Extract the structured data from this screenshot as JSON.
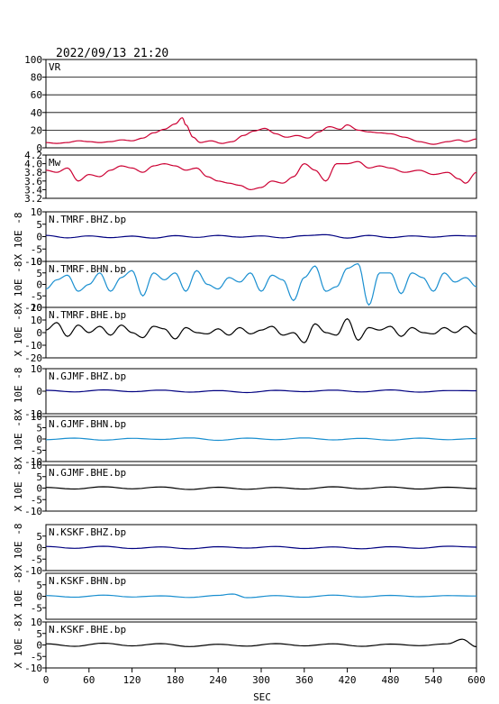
{
  "title": "2022/09/13 21:20",
  "xlabel": "SEC",
  "ylabel": "X 10E -8",
  "x_ticks": [
    "0",
    "60",
    "120",
    "180",
    "240",
    "300",
    "360",
    "420",
    "480",
    "540",
    "600"
  ],
  "colors": {
    "red": "#cc0033",
    "navy": "#000080",
    "cyan": "#1a8fd0",
    "black": "#000000",
    "frame": "#000000"
  },
  "chart_data": [
    {
      "type": "line",
      "label": "VR",
      "color": "#cc0033",
      "ylim": [
        0,
        100
      ],
      "yticks": [
        "0",
        "20",
        "40",
        "60",
        "80",
        "100"
      ],
      "grid": true,
      "x": [
        0,
        15,
        30,
        45,
        60,
        75,
        90,
        105,
        120,
        135,
        150,
        165,
        180,
        190,
        195,
        205,
        215,
        230,
        245,
        260,
        275,
        290,
        305,
        320,
        335,
        350,
        365,
        380,
        395,
        410,
        420,
        435,
        450,
        465,
        480,
        500,
        520,
        540,
        560,
        575,
        585,
        600
      ],
      "values": [
        6,
        5,
        6,
        8,
        7,
        6,
        7,
        9,
        8,
        11,
        17,
        21,
        27,
        34,
        26,
        12,
        6,
        8,
        5,
        7,
        14,
        19,
        22,
        16,
        12,
        14,
        11,
        18,
        24,
        21,
        26,
        20,
        18,
        17,
        16,
        12,
        7,
        4,
        7,
        9,
        7,
        10
      ]
    },
    {
      "type": "line",
      "label": "Mw",
      "color": "#cc0033",
      "ylim": [
        3.2,
        4.2
      ],
      "yticks": [
        "3.2",
        "3.4",
        "3.6",
        "3.8",
        "4.0",
        "4.2"
      ],
      "grid": false,
      "x": [
        0,
        15,
        30,
        45,
        60,
        75,
        90,
        105,
        120,
        135,
        150,
        165,
        180,
        195,
        210,
        225,
        240,
        255,
        270,
        285,
        300,
        315,
        330,
        345,
        360,
        375,
        390,
        405,
        420,
        435,
        450,
        465,
        480,
        500,
        520,
        540,
        560,
        575,
        585,
        600
      ],
      "values": [
        3.85,
        3.8,
        3.9,
        3.6,
        3.75,
        3.7,
        3.85,
        3.95,
        3.9,
        3.8,
        3.95,
        4.0,
        3.95,
        3.85,
        3.9,
        3.7,
        3.6,
        3.55,
        3.5,
        3.4,
        3.45,
        3.6,
        3.55,
        3.7,
        4.0,
        3.85,
        3.6,
        4.0,
        4.0,
        4.05,
        3.9,
        3.95,
        3.9,
        3.8,
        3.85,
        3.75,
        3.8,
        3.65,
        3.55,
        3.8
      ]
    },
    {
      "type": "line",
      "label": "N.TMRF.BHZ.bp",
      "color": "#000080",
      "ylim": [
        -10,
        10
      ],
      "yticks": [
        "-10",
        "-5",
        "0",
        "5",
        "10"
      ],
      "x": [
        0,
        30,
        60,
        90,
        120,
        150,
        180,
        210,
        240,
        270,
        300,
        330,
        360,
        390,
        420,
        450,
        480,
        510,
        540,
        570,
        600
      ],
      "values": [
        0.5,
        -0.5,
        0.3,
        -0.4,
        0.2,
        -0.6,
        0.4,
        -0.3,
        0.5,
        -0.2,
        0.3,
        -0.5,
        0.4,
        0.8,
        -0.6,
        0.5,
        -0.4,
        0.3,
        -0.2,
        0.4,
        0.2
      ]
    },
    {
      "type": "line",
      "label": "N.TMRF.BHN.bp",
      "color": "#1a8fd0",
      "ylim": [
        -10,
        10
      ],
      "yticks": [
        "-10",
        "-5",
        "0",
        "5",
        "10"
      ],
      "x": [
        0,
        15,
        30,
        45,
        60,
        75,
        90,
        105,
        120,
        135,
        150,
        165,
        180,
        195,
        210,
        225,
        240,
        255,
        270,
        285,
        300,
        315,
        330,
        345,
        360,
        375,
        390,
        405,
        420,
        435,
        450,
        465,
        480,
        495,
        510,
        525,
        540,
        555,
        570,
        585,
        600
      ],
      "values": [
        -2,
        2,
        4,
        -3,
        0,
        5,
        -3,
        3,
        6,
        -5,
        5,
        2,
        5,
        -3,
        6,
        0,
        -2,
        3,
        1,
        5,
        -3,
        4,
        2,
        -7,
        3,
        8,
        -3,
        -1,
        7,
        9,
        -9,
        5,
        5,
        -4,
        5,
        3,
        -3,
        5,
        1,
        3,
        -1
      ]
    },
    {
      "type": "line",
      "label": "N.TMRF.BHE.bp",
      "color": "#000000",
      "ylim": [
        -20,
        20
      ],
      "yticks": [
        "-20",
        "-10",
        "0",
        "10",
        "20"
      ],
      "x": [
        0,
        15,
        30,
        45,
        60,
        75,
        90,
        105,
        120,
        135,
        150,
        165,
        180,
        195,
        210,
        225,
        240,
        255,
        270,
        285,
        300,
        315,
        330,
        345,
        360,
        375,
        390,
        405,
        420,
        435,
        450,
        465,
        480,
        495,
        510,
        525,
        540,
        555,
        570,
        585,
        600
      ],
      "values": [
        2,
        8,
        -3,
        6,
        0,
        5,
        -2,
        6,
        0,
        -4,
        5,
        3,
        -5,
        4,
        0,
        -1,
        3,
        -2,
        4,
        -1,
        2,
        5,
        -2,
        0,
        -8,
        7,
        0,
        -2,
        11,
        -6,
        4,
        2,
        5,
        -3,
        4,
        0,
        -1,
        4,
        0,
        5,
        -1
      ]
    },
    {
      "type": "line",
      "label": "N.GJMF.BHZ.bp",
      "color": "#000080",
      "ylim": [
        -10,
        10
      ],
      "yticks": [
        "-10",
        "0",
        "10"
      ],
      "x": [
        0,
        40,
        80,
        120,
        160,
        200,
        240,
        280,
        320,
        360,
        400,
        440,
        480,
        520,
        560,
        600
      ],
      "values": [
        0.4,
        -0.3,
        0.6,
        -0.2,
        0.5,
        -0.4,
        0.3,
        -0.6,
        0.4,
        -0.2,
        0.5,
        -0.3,
        0.6,
        -0.4,
        0.3,
        0.2
      ]
    },
    {
      "type": "line",
      "label": "N.GJMF.BHN.bp",
      "color": "#1a8fd0",
      "ylim": [
        -10,
        10
      ],
      "yticks": [
        "-10",
        "-5",
        "0",
        "5",
        "10"
      ],
      "x": [
        0,
        40,
        80,
        120,
        160,
        200,
        240,
        280,
        320,
        360,
        400,
        440,
        480,
        520,
        560,
        600
      ],
      "values": [
        -0.3,
        0.4,
        -0.5,
        0.3,
        -0.2,
        0.5,
        -0.6,
        0.4,
        -0.3,
        0.5,
        -0.4,
        0.3,
        -0.5,
        0.4,
        -0.3,
        0.2
      ]
    },
    {
      "type": "line",
      "label": "N.GJMF.BHE.bp",
      "color": "#000000",
      "ylim": [
        -10,
        10
      ],
      "yticks": [
        "-10",
        "-5",
        "0",
        "5",
        "10"
      ],
      "x": [
        0,
        40,
        80,
        120,
        160,
        200,
        240,
        280,
        320,
        360,
        400,
        440,
        480,
        520,
        560,
        600
      ],
      "values": [
        0.3,
        -0.4,
        0.6,
        -0.3,
        0.5,
        -0.6,
        0.4,
        -0.5,
        0.3,
        -0.4,
        0.6,
        -0.3,
        0.5,
        -0.4,
        0.4,
        -0.2
      ]
    },
    {
      "type": "line",
      "label": "N.KSKF.BHZ.bp",
      "color": "#000080",
      "ylim": [
        -10,
        10
      ],
      "yticks": [
        "-10",
        "-5",
        "0",
        "5"
      ],
      "x": [
        0,
        40,
        80,
        120,
        160,
        200,
        240,
        280,
        320,
        360,
        400,
        440,
        480,
        520,
        560,
        600
      ],
      "values": [
        0.5,
        -0.3,
        0.6,
        -0.4,
        0.3,
        -0.5,
        0.4,
        -0.2,
        0.5,
        -0.4,
        0.3,
        -0.5,
        0.4,
        -0.3,
        0.6,
        0.2
      ]
    },
    {
      "type": "line",
      "label": "N.KSKF.BHN.bp",
      "color": "#1a8fd0",
      "ylim": [
        -10,
        10
      ],
      "yticks": [
        "-5",
        "0",
        "5"
      ],
      "x": [
        0,
        40,
        80,
        120,
        160,
        200,
        240,
        260,
        280,
        320,
        360,
        400,
        440,
        480,
        520,
        560,
        600
      ],
      "values": [
        0.3,
        -0.4,
        0.5,
        -0.3,
        0.2,
        -0.5,
        0.4,
        1.0,
        -0.6,
        0.3,
        -0.4,
        0.5,
        -0.3,
        0.4,
        -0.2,
        0.3,
        0.1
      ]
    },
    {
      "type": "line",
      "label": "N.KSKF.BHE.bp",
      "color": "#000000",
      "ylim": [
        -10,
        10
      ],
      "yticks": [
        "-10",
        "-5",
        "0",
        "5",
        "10"
      ],
      "x": [
        0,
        40,
        80,
        120,
        160,
        200,
        240,
        280,
        320,
        360,
        400,
        440,
        480,
        520,
        560,
        580,
        600
      ],
      "values": [
        0.5,
        -0.6,
        0.8,
        -0.4,
        0.6,
        -0.7,
        0.3,
        -0.5,
        0.6,
        -0.4,
        0.5,
        -0.6,
        0.4,
        -0.3,
        0.5,
        2.5,
        -0.8
      ]
    }
  ]
}
